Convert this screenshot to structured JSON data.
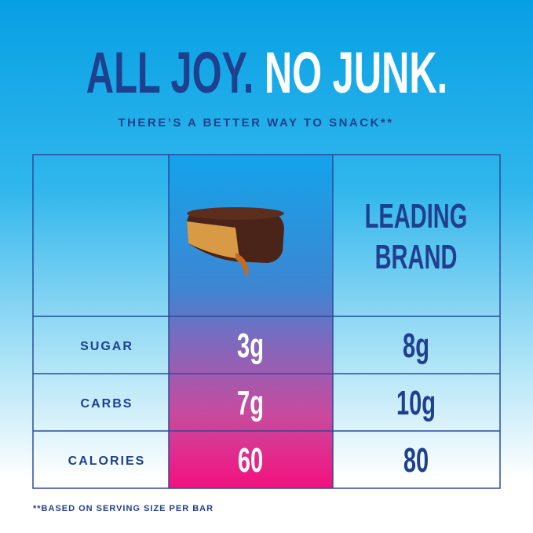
{
  "headline": {
    "part1": "ALL JOY.",
    "part2": "NO JUNK."
  },
  "subtitle": "THERE’S A BETTER WAY TO SNACK**",
  "table": {
    "header": {
      "competitor": "LEADING BRAND"
    },
    "rows": [
      {
        "label": "SUGAR",
        "ours": "3g",
        "theirs": "8g"
      },
      {
        "label": "CARBS",
        "ours": "7g",
        "theirs": "10g"
      },
      {
        "label": "CALORIES",
        "ours": "60",
        "theirs": "80"
      }
    ]
  },
  "footnote": "**BASED ON SERVING SIZE PER BAR"
}
